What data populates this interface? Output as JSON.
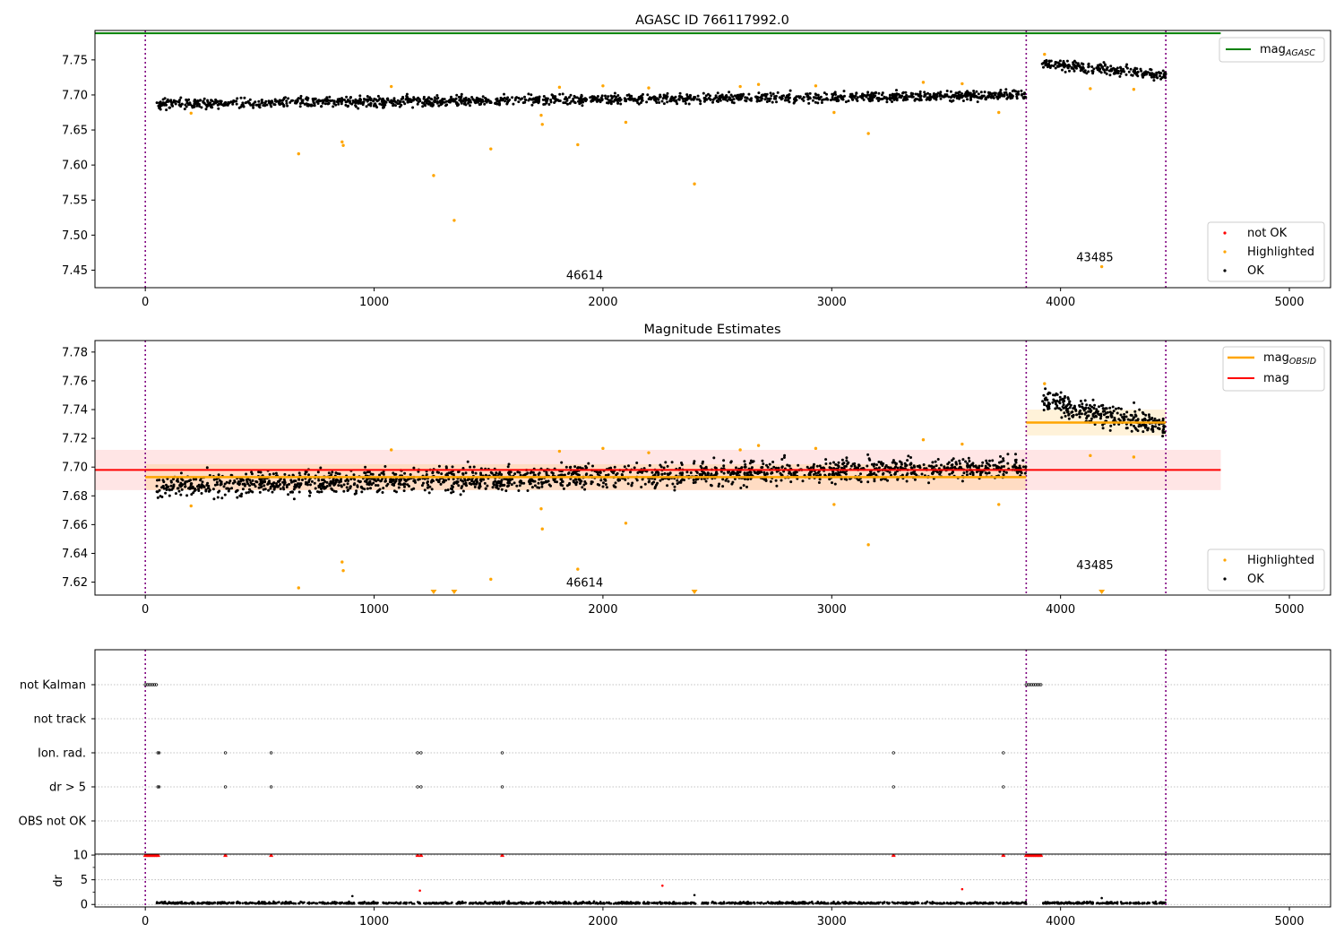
{
  "figure": {
    "panel1_title": "AGASC ID 766117992.0",
    "panel2_title": "Magnitude Estimates"
  },
  "chart_data": [
    {
      "type": "scatter",
      "title": "AGASC ID 766117992.0",
      "xlabel": "",
      "ylabel": "",
      "xlim": [
        -220,
        5180
      ],
      "ylim": [
        7.425,
        7.792
      ],
      "xticks": [
        0,
        1000,
        2000,
        3000,
        4000,
        5000
      ],
      "yticks": [
        7.45,
        7.5,
        7.55,
        7.6,
        7.65,
        7.7,
        7.75
      ],
      "grid": false,
      "legend_top": {
        "placement": "top-right",
        "entries": [
          "mag_AGASC"
        ]
      },
      "legend_bottom": {
        "placement": "bottom-right",
        "entries": [
          "not OK",
          "Highlighted",
          "OK"
        ]
      },
      "vlines_x": [
        0,
        3850,
        4460
      ],
      "segment_labels": [
        {
          "text": "46614",
          "x": 1920,
          "y": 7.437
        },
        {
          "text": "43485",
          "x": 4150,
          "y": 7.463
        }
      ],
      "mag_agasc": {
        "value": 7.788,
        "x_range": [
          -220,
          4700
        ],
        "color": "#008000"
      },
      "ok_trend": [
        {
          "x_range": [
            50,
            3850
          ],
          "y_start": 7.687,
          "y_end": 7.7,
          "scatter": 0.005
        },
        {
          "x_range": [
            3920,
            4460
          ],
          "y_start": 7.745,
          "y_end": 7.728,
          "scatter": 0.005
        }
      ],
      "highlighted": [
        [
          200,
          7.674
        ],
        [
          670,
          7.616
        ],
        [
          860,
          7.633
        ],
        [
          865,
          7.628
        ],
        [
          1075,
          7.712
        ],
        [
          1260,
          7.585
        ],
        [
          1350,
          7.521
        ],
        [
          1510,
          7.623
        ],
        [
          1730,
          7.671
        ],
        [
          1735,
          7.658
        ],
        [
          1810,
          7.711
        ],
        [
          1890,
          7.629
        ],
        [
          2000,
          7.713
        ],
        [
          2100,
          7.661
        ],
        [
          2200,
          7.71
        ],
        [
          2400,
          7.573
        ],
        [
          2600,
          7.712
        ],
        [
          2680,
          7.715
        ],
        [
          2930,
          7.713
        ],
        [
          3010,
          7.675
        ],
        [
          3160,
          7.645
        ],
        [
          3400,
          7.718
        ],
        [
          3570,
          7.716
        ],
        [
          3730,
          7.675
        ],
        [
          3930,
          7.758
        ],
        [
          4130,
          7.709
        ],
        [
          4180,
          7.455
        ],
        [
          4320,
          7.708
        ]
      ],
      "colors": {
        "ok": "#000000",
        "highlighted": "#ffa500",
        "not_ok": "#ff0000",
        "vline": "#800080"
      }
    },
    {
      "type": "scatter",
      "title": "Magnitude Estimates",
      "xlabel": "",
      "ylabel": "",
      "xlim": [
        -220,
        5180
      ],
      "ylim": [
        7.611,
        7.788
      ],
      "xticks": [
        0,
        1000,
        2000,
        3000,
        4000,
        5000
      ],
      "yticks": [
        7.62,
        7.64,
        7.66,
        7.68,
        7.7,
        7.72,
        7.74,
        7.76,
        7.78
      ],
      "grid": false,
      "legend_top": {
        "placement": "top-right",
        "entries": [
          "mag_OBSID",
          "mag"
        ]
      },
      "legend_bottom": {
        "placement": "bottom-right",
        "entries": [
          "Highlighted",
          "OK"
        ]
      },
      "vlines_x": [
        0,
        3850,
        4460
      ],
      "segment_labels": [
        {
          "text": "46614",
          "x": 1920,
          "y": 7.617
        },
        {
          "text": "43485",
          "x": 4150,
          "y": 7.629
        }
      ],
      "mag_line": {
        "value": 7.698,
        "band": [
          7.684,
          7.712
        ],
        "x_range": [
          -220,
          4700
        ],
        "color": "#ff0000"
      },
      "mag_obsid": [
        {
          "x_range": [
            0,
            3850
          ],
          "value": 7.693,
          "band": [
            7.684,
            7.702
          ]
        },
        {
          "x_range": [
            3850,
            4460
          ],
          "value": 7.731,
          "band": [
            7.722,
            7.74
          ]
        }
      ],
      "off_scale_markers_x": [
        1260,
        1350,
        2400,
        4180
      ],
      "highlighted": [
        [
          200,
          7.673
        ],
        [
          670,
          7.616
        ],
        [
          860,
          7.634
        ],
        [
          865,
          7.628
        ],
        [
          1075,
          7.712
        ],
        [
          1510,
          7.622
        ],
        [
          1730,
          7.671
        ],
        [
          1735,
          7.657
        ],
        [
          1810,
          7.711
        ],
        [
          1890,
          7.629
        ],
        [
          2000,
          7.713
        ],
        [
          2100,
          7.661
        ],
        [
          2200,
          7.71
        ],
        [
          2600,
          7.712
        ],
        [
          2680,
          7.715
        ],
        [
          2930,
          7.713
        ],
        [
          3010,
          7.674
        ],
        [
          3160,
          7.646
        ],
        [
          3400,
          7.719
        ],
        [
          3570,
          7.716
        ],
        [
          3730,
          7.674
        ],
        [
          3930,
          7.758
        ],
        [
          4130,
          7.708
        ],
        [
          4320,
          7.707
        ]
      ]
    },
    {
      "type": "scatter",
      "title": "",
      "xlabel": "",
      "ylabel": "",
      "xlim": [
        -220,
        5180
      ],
      "categories": [
        "not Kalman",
        "not track",
        "Ion. rad.",
        "dr > 5",
        "OBS not OK"
      ],
      "vlines_x": [
        0,
        3850,
        4460
      ],
      "flags": {
        "not Kalman": [
          [
            0,
            55
          ],
          [
            3850,
            3920
          ]
        ],
        "not track": [],
        "Ion. rad.": [
          55,
          60,
          350,
          550,
          1190,
          1205,
          1560,
          3270,
          3750
        ],
        "dr > 5": [
          55,
          60,
          350,
          550,
          1190,
          1205,
          1560,
          3270,
          3750
        ],
        "OBS not OK": []
      }
    },
    {
      "type": "scatter",
      "title": "",
      "xlabel": "",
      "ylabel": "dr",
      "xlim": [
        -220,
        5180
      ],
      "ylim": [
        -0.5,
        10.2
      ],
      "yticks": [
        0,
        5,
        10
      ],
      "clip_value": 10,
      "clipped_x": [
        [
          0,
          60
        ],
        [
          350
        ],
        [
          550
        ],
        [
          1190
        ],
        [
          1205
        ],
        [
          1560
        ],
        [
          3270
        ],
        [
          3750
        ],
        [
          [
            3850,
            3920
          ]
        ]
      ],
      "baseline_x_ranges": [
        [
          50,
          3850
        ],
        [
          3920,
          4460
        ]
      ],
      "outliers": [
        [
          905,
          1.7
        ],
        [
          1200,
          2.8
        ],
        [
          2260,
          3.8
        ],
        [
          2400,
          1.9
        ],
        [
          3570,
          3.1
        ],
        [
          4180,
          1.3
        ]
      ]
    }
  ]
}
